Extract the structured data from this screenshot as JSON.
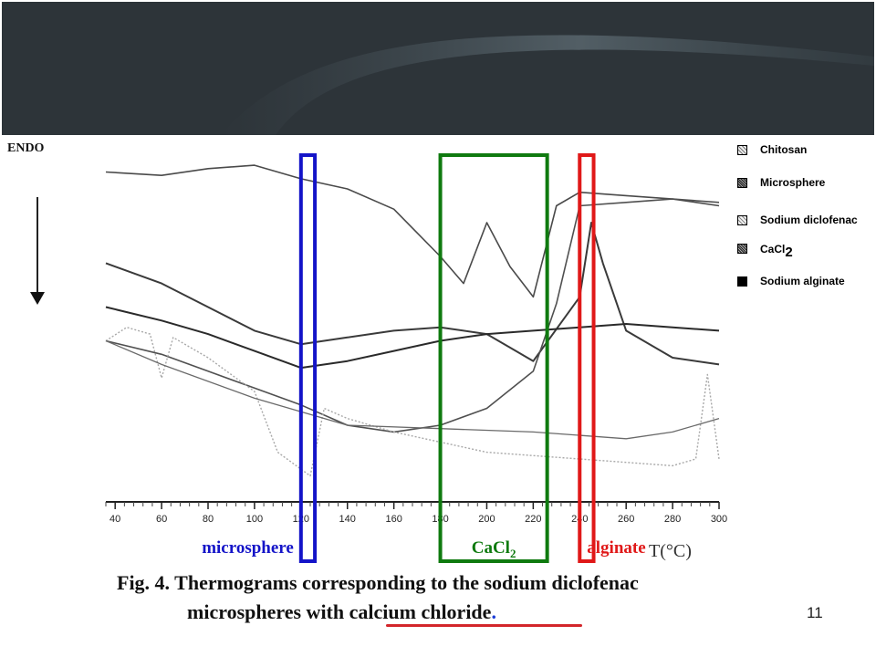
{
  "slide": {
    "page_number": "11",
    "caption_line1": "Fig. 4. Thermograms corresponding to the sodium diclofenac",
    "caption_line2_prefix": "microspheres with ",
    "caption_line2_underlined": "calcium chloride",
    "caption_line2_suffix": ".",
    "accent_colors": {
      "header": "#2d3439",
      "blue": "#1414c8",
      "green": "#0f7a0f",
      "red": "#e01818",
      "underline": "#d3262b"
    }
  },
  "chart_data": {
    "type": "line",
    "endo_label": "ENDO",
    "x_axis_label": "T(°C)",
    "x_ticks": [
      40,
      60,
      80,
      100,
      120,
      140,
      160,
      180,
      200,
      220,
      240,
      260,
      280,
      300
    ],
    "xlim": [
      36,
      300
    ],
    "legend": [
      {
        "label": "Chitosan",
        "swatch": "dotted-grey"
      },
      {
        "label": "Microsphere",
        "swatch": "dense-dotted"
      },
      {
        "label": "Sodium diclofenac",
        "swatch": "light-dotted"
      },
      {
        "label": "CaCl",
        "sub": "2",
        "swatch": "dense-dotted"
      },
      {
        "label": "Sodium alginate",
        "swatch": "solid-black"
      }
    ],
    "highlights": [
      {
        "label": "microsphere",
        "x_range": [
          120,
          126
        ],
        "color": "#1414c8"
      },
      {
        "label": "CaCl",
        "sub": "2",
        "x_range": [
          180,
          226
        ],
        "color": "#0f7a0f"
      },
      {
        "label": "alginate",
        "x_range": [
          240,
          246
        ],
        "color": "#e01818"
      }
    ],
    "series": [
      {
        "x": [
          36,
          60,
          80,
          100,
          120,
          140,
          160,
          180,
          190,
          200,
          210,
          220,
          230,
          240,
          260,
          280,
          300
        ],
        "y": [
          0.95,
          0.94,
          0.96,
          0.97,
          0.93,
          0.9,
          0.84,
          0.7,
          0.62,
          0.8,
          0.67,
          0.58,
          0.85,
          0.89,
          0.88,
          0.87,
          0.85
        ]
      },
      {
        "x": [
          36,
          60,
          80,
          100,
          120,
          140,
          160,
          180,
          200,
          220,
          240,
          245,
          250,
          260,
          280,
          300
        ],
        "y": [
          0.68,
          0.62,
          0.55,
          0.48,
          0.44,
          0.46,
          0.48,
          0.49,
          0.47,
          0.39,
          0.58,
          0.8,
          0.68,
          0.48,
          0.4,
          0.38
        ]
      },
      {
        "x": [
          36,
          60,
          80,
          100,
          120,
          140,
          160,
          180,
          200,
          220,
          240,
          260,
          280,
          300
        ],
        "y": [
          0.55,
          0.51,
          0.47,
          0.42,
          0.37,
          0.39,
          0.42,
          0.45,
          0.47,
          0.48,
          0.49,
          0.5,
          0.49,
          0.48
        ]
      },
      {
        "x": [
          36,
          60,
          80,
          100,
          120,
          140,
          160,
          180,
          200,
          220,
          230,
          240,
          260,
          280,
          300
        ],
        "y": [
          0.45,
          0.41,
          0.36,
          0.31,
          0.26,
          0.2,
          0.18,
          0.2,
          0.25,
          0.36,
          0.56,
          0.85,
          0.86,
          0.87,
          0.86
        ]
      },
      {
        "x": [
          36,
          45,
          55,
          60,
          65,
          80,
          100,
          110,
          118,
          124,
          130,
          140,
          160,
          200,
          240,
          260,
          280,
          290,
          295,
          300
        ],
        "y": [
          0.45,
          0.49,
          0.47,
          0.34,
          0.46,
          0.4,
          0.3,
          0.12,
          0.08,
          0.05,
          0.25,
          0.22,
          0.18,
          0.12,
          0.1,
          0.09,
          0.08,
          0.1,
          0.35,
          0.1
        ]
      },
      {
        "x": [
          36,
          60,
          100,
          140,
          180,
          220,
          260,
          280,
          300
        ],
        "y": [
          0.45,
          0.38,
          0.28,
          0.2,
          0.19,
          0.18,
          0.16,
          0.18,
          0.22
        ]
      }
    ]
  }
}
